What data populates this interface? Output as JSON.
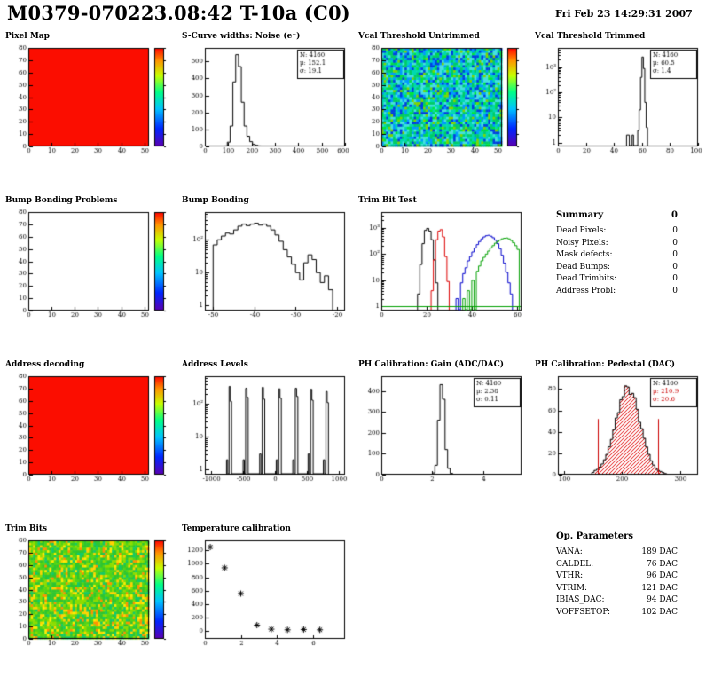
{
  "header": {
    "title": "M0379-070223.08:42 T-10a (C0)",
    "datetime": "Fri Feb 23 14:29:31 2007"
  },
  "summary": {
    "title": "Summary",
    "value": "0",
    "rows": [
      {
        "label": "Dead Pixels:",
        "value": "0"
      },
      {
        "label": "Noisy Pixels:",
        "value": "0"
      },
      {
        "label": "Mask defects:",
        "value": "0"
      },
      {
        "label": "Dead Bumps:",
        "value": "0"
      },
      {
        "label": "Dead Trimbits:",
        "value": "0"
      },
      {
        "label": "Address Probl:",
        "value": "0"
      }
    ]
  },
  "op_parameters": {
    "title": "Op. Parameters",
    "rows": [
      {
        "label": "VANA:",
        "value": "189 DAC"
      },
      {
        "label": "CALDEL:",
        "value": "76 DAC"
      },
      {
        "label": "VTHR:",
        "value": "96 DAC"
      },
      {
        "label": "VTRIM:",
        "value": "121 DAC"
      },
      {
        "label": "IBIAS_DAC:",
        "value": "94 DAC"
      },
      {
        "label": "VOFFSETOP:",
        "value": "102 DAC"
      }
    ]
  },
  "chart_data": [
    {
      "id": "pixel-map",
      "type": "heatmap",
      "title": "Pixel Map",
      "xlim": [
        0,
        52
      ],
      "ylim": [
        0,
        80
      ],
      "xticks": [
        0,
        10,
        20,
        30,
        40,
        50
      ],
      "yticks": [
        0,
        10,
        20,
        30,
        40,
        50,
        60,
        70,
        80
      ],
      "fill": {
        "mode": "uniform",
        "color": "#fb0d00"
      },
      "colorbar": true
    },
    {
      "id": "scurve-noise",
      "type": "hist",
      "title": "S-Curve widths: Noise (e⁻)",
      "xlim": [
        0,
        600
      ],
      "ylim": [
        0,
        580
      ],
      "xticks": [
        0,
        100,
        200,
        300,
        400,
        500,
        600
      ],
      "yticks": [
        0,
        100,
        200,
        300,
        400,
        500
      ],
      "binWidth": 12,
      "color": "#000000",
      "bins": [
        [
          84,
          3
        ],
        [
          96,
          25
        ],
        [
          108,
          120
        ],
        [
          120,
          380
        ],
        [
          132,
          540
        ],
        [
          144,
          470
        ],
        [
          156,
          260
        ],
        [
          168,
          120
        ],
        [
          180,
          60
        ],
        [
          192,
          28
        ],
        [
          204,
          12
        ],
        [
          216,
          6
        ],
        [
          228,
          3
        ]
      ],
      "stats": [
        {
          "text": "N: 4160"
        },
        {
          "text": "μ: 152.1"
        },
        {
          "text": "σ: 19.1"
        }
      ]
    },
    {
      "id": "vcal-threshold-untrimmed",
      "type": "heatmap",
      "title": "Vcal Threshold Untrimmed",
      "xlim": [
        0,
        52
      ],
      "ylim": [
        0,
        80
      ],
      "xticks": [
        0,
        10,
        20,
        30,
        40,
        50
      ],
      "yticks": [
        0,
        10,
        20,
        30,
        40,
        50,
        60,
        70,
        80
      ],
      "fill": {
        "mode": "noise",
        "palette": [
          [
            "#00d8b0",
            0.24
          ],
          [
            "#00cc66",
            0.2
          ],
          [
            "#44e0e0",
            0.16
          ],
          [
            "#0099ff",
            0.15
          ],
          [
            "#0041e0",
            0.12
          ],
          [
            "#7fd400",
            0.08
          ],
          [
            "#00e838",
            0.05
          ]
        ]
      },
      "colorbar": true
    },
    {
      "id": "vcal-threshold-trimmed",
      "type": "hist",
      "title": "Vcal Threshold Trimmed",
      "logy": true,
      "xlim": [
        0,
        100
      ],
      "ylim": [
        0.7,
        6000
      ],
      "xticks": [
        0,
        20,
        40,
        60,
        80,
        100
      ],
      "binWidth": 1,
      "color": "#000000",
      "bins": [
        [
          49,
          2
        ],
        [
          50,
          2
        ],
        [
          53,
          2
        ],
        [
          57,
          3
        ],
        [
          58,
          20
        ],
        [
          59,
          400
        ],
        [
          60,
          2600
        ],
        [
          61,
          900
        ],
        [
          62,
          40
        ],
        [
          63,
          4
        ]
      ],
      "stats": [
        {
          "text": "N: 4160"
        },
        {
          "text": "μ: 60.5"
        },
        {
          "text": "σ: 1.4"
        }
      ]
    },
    {
      "id": "bump-bonding-problems",
      "type": "heatmap",
      "title": "Bump Bonding Problems",
      "xlim": [
        0,
        52
      ],
      "ylim": [
        0,
        80
      ],
      "xticks": [
        0,
        10,
        20,
        30,
        40,
        50
      ],
      "yticks": [
        0,
        10,
        20,
        30,
        40,
        50,
        60,
        70,
        80
      ],
      "fill": {
        "mode": "none"
      },
      "colorbar": true
    },
    {
      "id": "bump-bonding",
      "type": "hist",
      "title": "Bump Bonding",
      "logy": true,
      "xlim": [
        -52,
        -18
      ],
      "ylim": [
        0.7,
        700
      ],
      "xticks": [
        -50,
        -40,
        -30,
        -20
      ],
      "binWidth": 1,
      "color": "#000000",
      "bins": [
        [
          -50,
          70
        ],
        [
          -49,
          100
        ],
        [
          -48,
          130
        ],
        [
          -47,
          160
        ],
        [
          -46,
          150
        ],
        [
          -45,
          200
        ],
        [
          -44,
          260
        ],
        [
          -43,
          300
        ],
        [
          -42,
          270
        ],
        [
          -41,
          300
        ],
        [
          -40,
          320
        ],
        [
          -39,
          280
        ],
        [
          -38,
          300
        ],
        [
          -37,
          260
        ],
        [
          -36,
          200
        ],
        [
          -35,
          140
        ],
        [
          -34,
          90
        ],
        [
          -33,
          50
        ],
        [
          -32,
          30
        ],
        [
          -31,
          18
        ],
        [
          -30,
          10
        ],
        [
          -29,
          6
        ],
        [
          -28,
          20
        ],
        [
          -27,
          35
        ],
        [
          -26,
          25
        ],
        [
          -25,
          10
        ],
        [
          -24,
          5
        ],
        [
          -23,
          8
        ],
        [
          -22,
          3
        ]
      ]
    },
    {
      "id": "trim-bit-test",
      "type": "multi-hist",
      "title": "Trim Bit Test",
      "logy": true,
      "xlim": [
        0,
        62
      ],
      "ylim": [
        0.7,
        4000
      ],
      "xticks": [
        0,
        20,
        40,
        60
      ],
      "binWidth": 1,
      "series": [
        {
          "name": "series-black",
          "color": "#000000",
          "bins": [
            [
              16,
              3
            ],
            [
              17,
              40
            ],
            [
              18,
              250
            ],
            [
              19,
              800
            ],
            [
              20,
              950
            ],
            [
              21,
              750
            ],
            [
              22,
              350
            ],
            [
              23,
              60
            ],
            [
              24,
              8
            ]
          ]
        },
        {
          "name": "series-red",
          "color": "#dd0000",
          "bins": [
            [
              22,
              4
            ],
            [
              23,
              60
            ],
            [
              24,
              350
            ],
            [
              25,
              750
            ],
            [
              26,
              850
            ],
            [
              27,
              450
            ],
            [
              28,
              80
            ],
            [
              29,
              9
            ]
          ]
        },
        {
          "name": "series-blue",
          "color": "#0000cc",
          "bins": [
            [
              33,
              2
            ],
            [
              35,
              8
            ],
            [
              36,
              18
            ],
            [
              37,
              30
            ],
            [
              38,
              55
            ],
            [
              39,
              80
            ],
            [
              40,
              120
            ],
            [
              41,
              170
            ],
            [
              42,
              230
            ],
            [
              43,
              300
            ],
            [
              44,
              380
            ],
            [
              45,
              450
            ],
            [
              46,
              500
            ],
            [
              47,
              520
            ],
            [
              48,
              480
            ],
            [
              49,
              420
            ],
            [
              50,
              340
            ],
            [
              51,
              250
            ],
            [
              52,
              160
            ],
            [
              53,
              90
            ],
            [
              54,
              45
            ],
            [
              55,
              20
            ],
            [
              56,
              8
            ],
            [
              57,
              3
            ]
          ]
        },
        {
          "name": "series-green",
          "color": "#00a000",
          "baseline1": true,
          "bins": [
            [
              36,
              2
            ],
            [
              38,
              4
            ],
            [
              40,
              10
            ],
            [
              42,
              22
            ],
            [
              43,
              35
            ],
            [
              44,
              55
            ],
            [
              45,
              75
            ],
            [
              46,
              100
            ],
            [
              47,
              130
            ],
            [
              48,
              170
            ],
            [
              49,
              210
            ],
            [
              50,
              260
            ],
            [
              51,
              300
            ],
            [
              52,
              340
            ],
            [
              53,
              380
            ],
            [
              54,
              400
            ],
            [
              55,
              410
            ],
            [
              56,
              380
            ],
            [
              57,
              330
            ],
            [
              58,
              270
            ],
            [
              59,
              210
            ],
            [
              60,
              150
            ]
          ]
        }
      ]
    },
    {
      "id": "address-decoding",
      "type": "heatmap",
      "title": "Address decoding",
      "xlim": [
        0,
        52
      ],
      "ylim": [
        0,
        80
      ],
      "xticks": [
        0,
        10,
        20,
        30,
        40,
        50
      ],
      "yticks": [
        0,
        10,
        20,
        30,
        40,
        50,
        60,
        70,
        80
      ],
      "fill": {
        "mode": "uniform",
        "color": "#fb0d00"
      },
      "colorbar": true
    },
    {
      "id": "address-levels",
      "type": "hist",
      "title": "Address Levels",
      "logy": true,
      "xlim": [
        -1100,
        1100
      ],
      "ylim": [
        0.7,
        700
      ],
      "xticks": [
        -1000,
        -500,
        0,
        500,
        1000
      ],
      "binWidth": 20,
      "color": "#000000",
      "bins": [
        [
          -760,
          2
        ],
        [
          -720,
          340
        ],
        [
          -700,
          120
        ],
        [
          -500,
          2
        ],
        [
          -460,
          300
        ],
        [
          -440,
          160
        ],
        [
          -240,
          3
        ],
        [
          -200,
          320
        ],
        [
          -180,
          140
        ],
        [
          20,
          2
        ],
        [
          60,
          290
        ],
        [
          80,
          150
        ],
        [
          280,
          2
        ],
        [
          320,
          300
        ],
        [
          340,
          170
        ],
        [
          520,
          3
        ],
        [
          560,
          280
        ],
        [
          580,
          130
        ],
        [
          760,
          2
        ],
        [
          800,
          240
        ],
        [
          820,
          110
        ]
      ]
    },
    {
      "id": "ph-calibration-gain",
      "type": "hist",
      "title": "PH Calibration: Gain (ADC/DAC)",
      "xlim": [
        0,
        5.5
      ],
      "ylim": [
        0,
        470
      ],
      "xticks": [
        0,
        2,
        4
      ],
      "yticks": [
        0,
        100,
        200,
        300,
        400
      ],
      "binWidth": 0.1,
      "color": "#000000",
      "bins": [
        [
          1.9,
          2
        ],
        [
          2.0,
          8
        ],
        [
          2.1,
          45
        ],
        [
          2.2,
          260
        ],
        [
          2.3,
          430
        ],
        [
          2.4,
          360
        ],
        [
          2.5,
          120
        ],
        [
          2.6,
          30
        ],
        [
          2.7,
          6
        ]
      ],
      "stats": [
        {
          "text": "N: 4160"
        },
        {
          "text": "μ: 2.38"
        },
        {
          "text": "σ: 0.11"
        }
      ]
    },
    {
      "id": "ph-calibration-pedestal",
      "type": "hist",
      "title": "PH Calibration: Pedestal (DAC)",
      "xlim": [
        90,
        330
      ],
      "ylim": [
        0,
        92
      ],
      "xticks": [
        100,
        200,
        300
      ],
      "yticks": [
        0,
        20,
        40,
        60,
        80
      ],
      "binWidth": 4,
      "color": "#000000",
      "hatch": "#e00000",
      "bins": [
        [
          148,
          2
        ],
        [
          152,
          4
        ],
        [
          156,
          5
        ],
        [
          160,
          7
        ],
        [
          164,
          10
        ],
        [
          168,
          14
        ],
        [
          172,
          19
        ],
        [
          176,
          26
        ],
        [
          180,
          33
        ],
        [
          184,
          42
        ],
        [
          188,
          53
        ],
        [
          192,
          58
        ],
        [
          196,
          70
        ],
        [
          200,
          73
        ],
        [
          204,
          83
        ],
        [
          208,
          82
        ],
        [
          212,
          75
        ],
        [
          216,
          76
        ],
        [
          220,
          72
        ],
        [
          224,
          61
        ],
        [
          228,
          49
        ],
        [
          232,
          43
        ],
        [
          236,
          34
        ],
        [
          240,
          26
        ],
        [
          244,
          19
        ],
        [
          248,
          13
        ],
        [
          252,
          9
        ],
        [
          256,
          6
        ],
        [
          260,
          4
        ],
        [
          264,
          3
        ],
        [
          268,
          2
        ],
        [
          272,
          1
        ]
      ],
      "vlines": [
        {
          "x": 158,
          "h": 52,
          "color": "#cc0000"
        },
        {
          "x": 262,
          "h": 52,
          "color": "#cc0000"
        }
      ],
      "stats": [
        {
          "text": "N: 4160"
        },
        {
          "text": "μ: 210.9",
          "color": "#cc0000"
        },
        {
          "text": "σ: 20.6",
          "color": "#cc0000"
        }
      ]
    },
    {
      "id": "trim-bits",
      "type": "heatmap",
      "title": "Trim Bits",
      "xlim": [
        0,
        52
      ],
      "ylim": [
        0,
        80
      ],
      "xticks": [
        0,
        10,
        20,
        30,
        40,
        50
      ],
      "yticks": [
        0,
        10,
        20,
        30,
        40,
        50,
        60,
        70,
        80
      ],
      "fill": {
        "mode": "noise",
        "palette": [
          [
            "#2fc62f",
            0.26
          ],
          [
            "#54d414",
            0.22
          ],
          [
            "#8cdc00",
            0.18
          ],
          [
            "#ffd300",
            0.12
          ],
          [
            "#12c96a",
            0.1
          ],
          [
            "#ff9100",
            0.06
          ],
          [
            "#ffee00",
            0.06
          ]
        ]
      },
      "colorbar": true
    },
    {
      "id": "temperature-calibration",
      "type": "scatter",
      "title": "Temperature calibration",
      "xlim": [
        0,
        7.8
      ],
      "ylim": [
        -120,
        1350
      ],
      "xticks": [
        0,
        2,
        4,
        6
      ],
      "yticks": [
        0,
        200,
        400,
        600,
        800,
        1000,
        1200
      ],
      "marker": "asterisk",
      "points": [
        [
          0.3,
          1250
        ],
        [
          1.1,
          940
        ],
        [
          2.0,
          555
        ],
        [
          2.9,
          85
        ],
        [
          3.7,
          25
        ],
        [
          4.6,
          15
        ],
        [
          5.5,
          20
        ],
        [
          6.4,
          15
        ]
      ]
    }
  ]
}
